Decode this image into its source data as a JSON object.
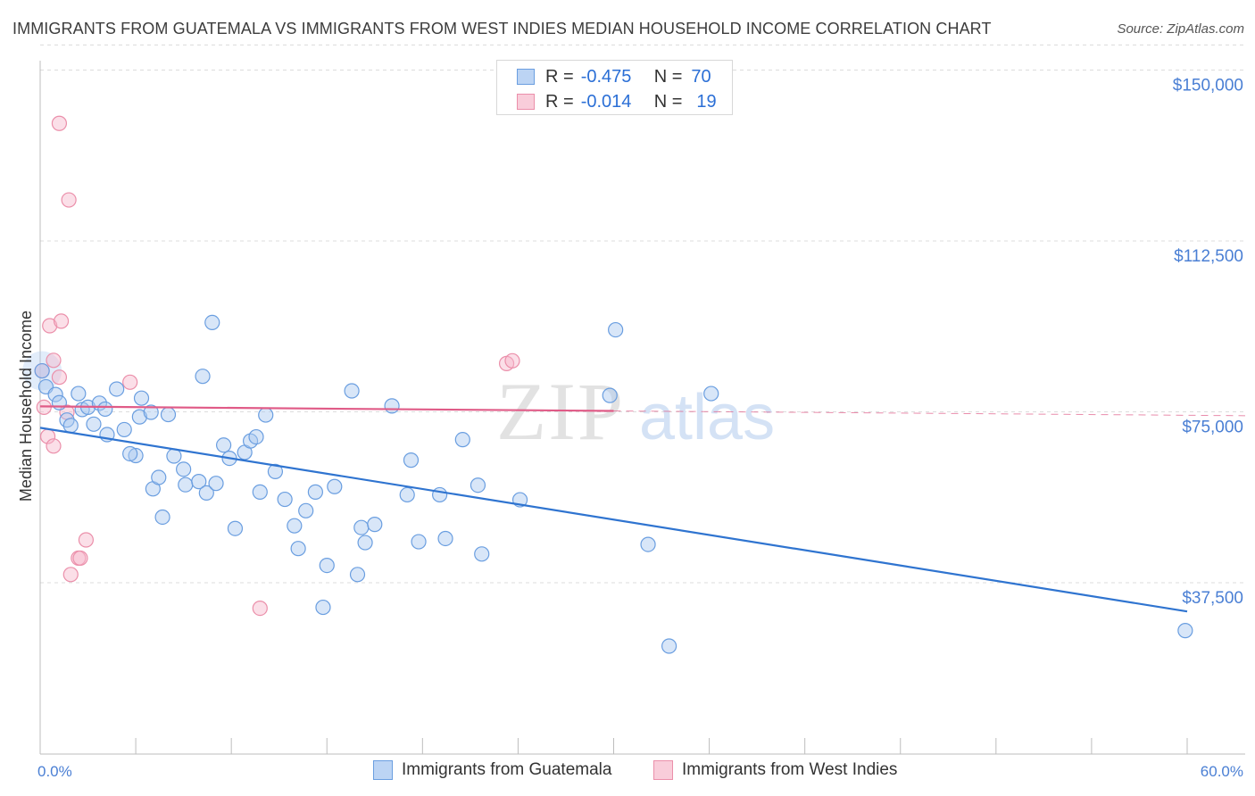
{
  "title": "IMMIGRANTS FROM GUATEMALA VS IMMIGRANTS FROM WEST INDIES MEDIAN HOUSEHOLD INCOME CORRELATION CHART",
  "source": "Source: ZipAtlas.com",
  "legend_stats": [
    {
      "r_label": "R =",
      "r_value": "-0.475",
      "n_label": "N =",
      "n_value": "70"
    },
    {
      "r_label": "R =",
      "r_value": "-0.014",
      "n_label": "N =",
      "n_value": "19"
    }
  ],
  "bottom_legend": [
    "Immigrants from Guatemala",
    "Immigrants from West Indies"
  ],
  "colors": {
    "guatemala_fill": "#a9c8f0",
    "guatemala_stroke": "#6a9ee0",
    "guatemala_line": "#2f74d0",
    "westindies_fill": "#f6b8cb",
    "westindies_stroke": "#eb8faa",
    "westindies_line": "#e05b87",
    "axis_text": "#4a7fd4",
    "grid": "#dcdcdc"
  },
  "watermark": {
    "part1": "ZIP",
    "part2": "atlas"
  },
  "chart_data": {
    "type": "scatter",
    "title": "IMMIGRANTS FROM GUATEMALA VS IMMIGRANTS FROM WEST INDIES MEDIAN HOUSEHOLD INCOME CORRELATION CHART",
    "xlabel": "",
    "ylabel": "Median Household Income",
    "xlim": [
      0,
      60
    ],
    "ylim": [
      0,
      155000
    ],
    "x_tick_labels": [
      "0.0%",
      "60.0%"
    ],
    "y_ticks": [
      37500,
      75000,
      112500,
      150000
    ],
    "y_tick_labels": [
      "$37,500",
      "$75,000",
      "$112,500",
      "$150,000"
    ],
    "grid": true,
    "legend_position": "top-center",
    "series": [
      {
        "name": "Immigrants from Guatemala",
        "r": -0.475,
        "n": 70,
        "trend": {
          "x": [
            0,
            60
          ],
          "y": [
            71500,
            31200
          ]
        },
        "points": [
          [
            0.1,
            84000
          ],
          [
            0.3,
            80500
          ],
          [
            0.8,
            78800
          ],
          [
            1.0,
            77000
          ],
          [
            1.4,
            73200
          ],
          [
            1.6,
            72000
          ],
          [
            2.0,
            79000
          ],
          [
            2.2,
            75500
          ],
          [
            2.5,
            76000
          ],
          [
            2.8,
            72300
          ],
          [
            3.1,
            76900
          ],
          [
            3.4,
            75600
          ],
          [
            3.5,
            70000
          ],
          [
            4.4,
            71100
          ],
          [
            4.0,
            80000
          ],
          [
            5.2,
            73900
          ],
          [
            5.3,
            78000
          ],
          [
            5.8,
            74900
          ],
          [
            6.7,
            74400
          ],
          [
            5.0,
            65400
          ],
          [
            4.7,
            65800
          ],
          [
            5.9,
            58100
          ],
          [
            6.2,
            60600
          ],
          [
            6.4,
            51900
          ],
          [
            7.0,
            65300
          ],
          [
            7.5,
            62400
          ],
          [
            7.6,
            59000
          ],
          [
            8.3,
            59700
          ],
          [
            8.7,
            57200
          ],
          [
            9.2,
            59300
          ],
          [
            9.6,
            67700
          ],
          [
            9.9,
            64800
          ],
          [
            10.2,
            49400
          ],
          [
            10.7,
            66100
          ],
          [
            11.0,
            68600
          ],
          [
            11.3,
            69500
          ],
          [
            11.5,
            57400
          ],
          [
            11.8,
            74300
          ],
          [
            12.3,
            61900
          ],
          [
            12.8,
            55800
          ],
          [
            13.3,
            50000
          ],
          [
            13.5,
            45000
          ],
          [
            13.9,
            53300
          ],
          [
            14.4,
            57400
          ],
          [
            14.8,
            32100
          ],
          [
            15.0,
            41300
          ],
          [
            15.4,
            58600
          ],
          [
            16.3,
            79600
          ],
          [
            16.6,
            39300
          ],
          [
            16.8,
            49600
          ],
          [
            17.0,
            46300
          ],
          [
            17.5,
            50300
          ],
          [
            18.4,
            76300
          ],
          [
            19.2,
            56800
          ],
          [
            19.4,
            64400
          ],
          [
            19.8,
            46500
          ],
          [
            20.9,
            56800
          ],
          [
            21.2,
            47200
          ],
          [
            22.1,
            68900
          ],
          [
            23.1,
            43800
          ],
          [
            22.9,
            58900
          ],
          [
            25.1,
            55700
          ],
          [
            29.8,
            78600
          ],
          [
            30.1,
            93000
          ],
          [
            31.8,
            45900
          ],
          [
            32.9,
            23600
          ],
          [
            35.1,
            79000
          ],
          [
            59.9,
            27000
          ],
          [
            8.5,
            82800
          ],
          [
            9.0,
            94600
          ]
        ]
      },
      {
        "name": "Immigrants from West Indies",
        "r": -0.014,
        "n": 19,
        "trend": {
          "x": [
            0,
            30
          ],
          "y": [
            76200,
            75200
          ]
        },
        "points": [
          [
            0.1,
            84000
          ],
          [
            0.2,
            76000
          ],
          [
            0.4,
            69600
          ],
          [
            0.5,
            93900
          ],
          [
            0.7,
            67500
          ],
          [
            0.7,
            86300
          ],
          [
            1.0,
            82600
          ],
          [
            1.0,
            138300
          ],
          [
            1.1,
            94900
          ],
          [
            1.4,
            74900
          ],
          [
            1.5,
            121500
          ],
          [
            1.6,
            39300
          ],
          [
            2.0,
            42900
          ],
          [
            2.1,
            42900
          ],
          [
            2.4,
            46900
          ],
          [
            4.7,
            81500
          ],
          [
            11.5,
            31900
          ],
          [
            24.4,
            85600
          ],
          [
            24.7,
            86200
          ]
        ]
      }
    ]
  }
}
